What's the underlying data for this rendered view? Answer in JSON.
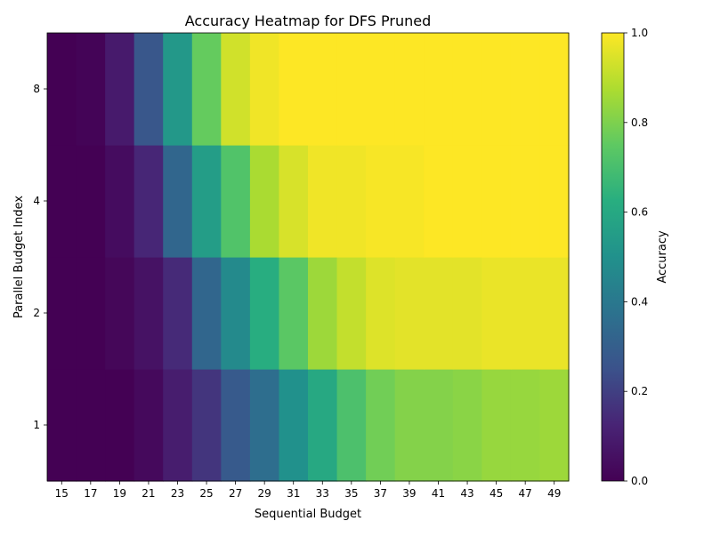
{
  "chart_data": {
    "type": "heatmap",
    "title": "Accuracy Heatmap for DFS Pruned",
    "xlabel": "Sequential Budget",
    "ylabel": "Parallel Budget Index",
    "x": [
      15,
      17,
      19,
      21,
      23,
      25,
      27,
      29,
      31,
      33,
      35,
      37,
      39,
      41,
      43,
      45,
      47,
      49
    ],
    "y": [
      "1",
      "2",
      "4",
      "8"
    ],
    "values": [
      [
        0.0,
        0.0,
        0.0,
        0.03,
        0.1,
        0.17,
        0.28,
        0.36,
        0.5,
        0.6,
        0.71,
        0.78,
        0.81,
        0.81,
        0.82,
        0.84,
        0.84,
        0.85
      ],
      [
        0.0,
        0.0,
        0.02,
        0.06,
        0.14,
        0.33,
        0.47,
        0.62,
        0.74,
        0.85,
        0.91,
        0.95,
        0.96,
        0.96,
        0.96,
        0.97,
        0.97,
        0.97
      ],
      [
        0.0,
        0.0,
        0.04,
        0.13,
        0.33,
        0.55,
        0.72,
        0.87,
        0.94,
        0.98,
        0.98,
        0.99,
        0.99,
        1.0,
        1.0,
        1.0,
        1.0,
        1.0
      ],
      [
        0.0,
        0.01,
        0.09,
        0.27,
        0.53,
        0.76,
        0.93,
        0.98,
        1.0,
        1.0,
        1.0,
        1.0,
        1.0,
        1.0,
        1.0,
        1.0,
        1.0,
        1.0
      ]
    ],
    "colormap": "viridis",
    "colorbar": {
      "label": "Accuracy",
      "range": [
        0.0,
        1.0
      ],
      "ticks": [
        "0.0",
        "0.2",
        "0.4",
        "0.6",
        "0.8",
        "1.0"
      ]
    },
    "grid": false
  }
}
